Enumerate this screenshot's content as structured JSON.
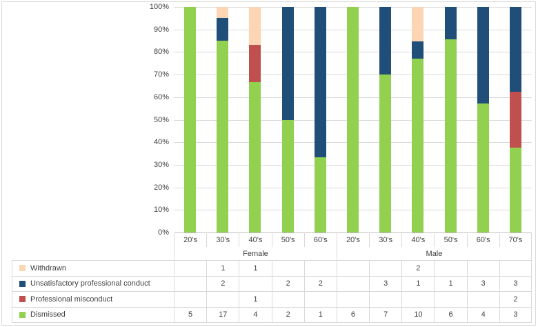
{
  "chart_data": {
    "type": "bar",
    "stacking": "percent",
    "title": "",
    "grid": true,
    "legend_position": "left-of-data-table",
    "y_axis": {
      "min": 0,
      "max": 100,
      "format": "percent",
      "ticks": [
        "100%",
        "90%",
        "80%",
        "70%",
        "60%",
        "50%",
        "40%",
        "30%",
        "20%",
        "10%",
        "0%"
      ]
    },
    "groups": [
      {
        "label": "Female",
        "categories": [
          "20's",
          "30's",
          "40's",
          "50's",
          "60's"
        ]
      },
      {
        "label": "Male",
        "categories": [
          "20's",
          "30's",
          "40's",
          "50's",
          "60's",
          "70's"
        ]
      }
    ],
    "series": [
      {
        "name": "Withdrawn",
        "color": "#FCD5B4",
        "values": [
          null,
          1,
          1,
          null,
          null,
          null,
          null,
          2,
          null,
          null,
          null
        ]
      },
      {
        "name": "Unsatisfactory professional conduct",
        "color": "#1F4E79",
        "values": [
          null,
          2,
          null,
          2,
          2,
          null,
          3,
          1,
          1,
          3,
          3
        ]
      },
      {
        "name": "Professional misconduct",
        "color": "#C0504D",
        "values": [
          null,
          null,
          1,
          null,
          null,
          null,
          null,
          null,
          null,
          null,
          2
        ]
      },
      {
        "name": "Dismissed",
        "color": "#92D050",
        "values": [
          5,
          17,
          4,
          2,
          1,
          6,
          7,
          10,
          6,
          4,
          3
        ]
      }
    ]
  },
  "colors": {
    "gridline": "#D9D9D9",
    "axis_line": "#BFBFBF",
    "table_border": "#D9D9D9",
    "text": "#3F3F3F",
    "background": "#FFFFFF"
  }
}
